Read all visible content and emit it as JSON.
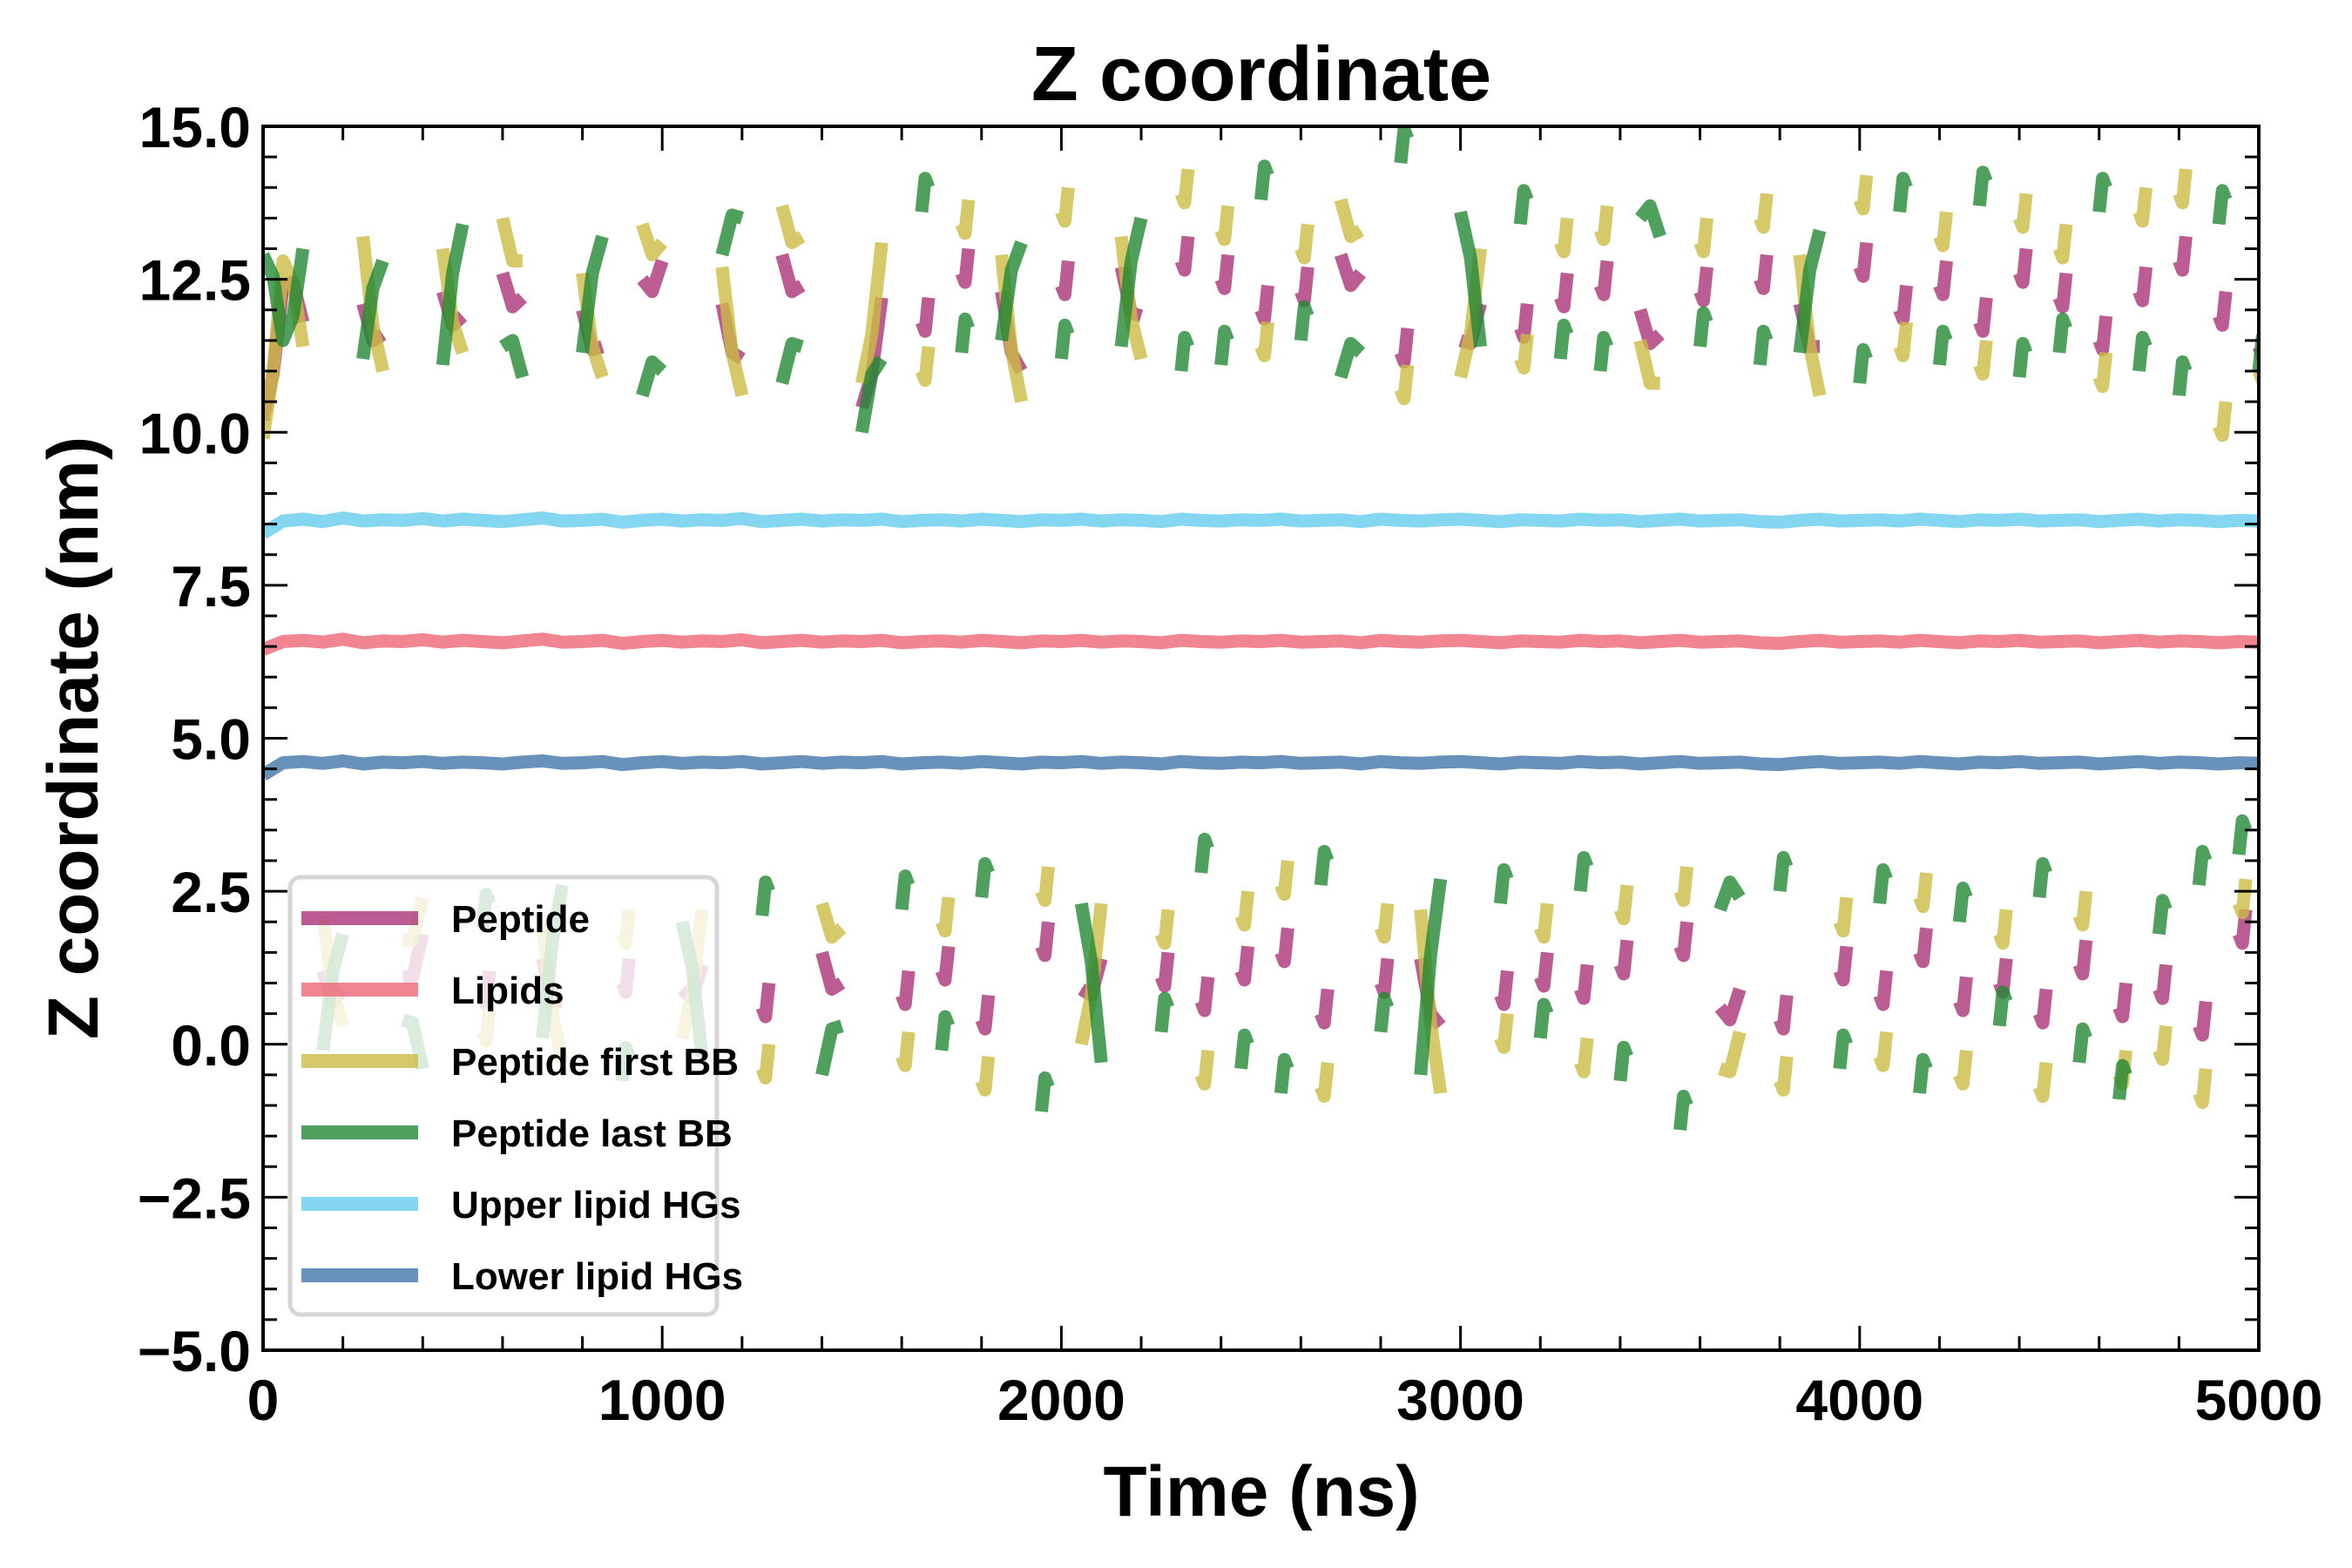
{
  "chart_data": {
    "type": "line",
    "title": "Z coordinate",
    "xlabel": "Time (ns)",
    "ylabel": "Z coordinate (nm)",
    "xlim": [
      0,
      5000
    ],
    "ylim": [
      -5.0,
      15.0
    ],
    "xticks": [
      0,
      1000,
      2000,
      3000,
      4000,
      5000
    ],
    "xtick_labels": [
      "0",
      "1000",
      "2000",
      "3000",
      "4000",
      "5000"
    ],
    "yticks": [
      -5.0,
      -2.5,
      0.0,
      2.5,
      5.0,
      7.5,
      10.0,
      12.5,
      15.0
    ],
    "ytick_labels": [
      "−5.0",
      "−2.5",
      "0.0",
      "2.5",
      "5.0",
      "7.5",
      "10.0",
      "12.5",
      "15.0"
    ],
    "x_minor_step": 200,
    "y_minor_step": 0.5,
    "grid": false,
    "legend_position": "lower-left",
    "x_step": 50,
    "series": [
      {
        "name": "Peptide",
        "color": "#AA3377",
        "alpha": 0.8,
        "values": [
          10.2,
          12.4,
          11.8,
          1.2,
          0.9,
          12.1,
          11.6,
          1.1,
          1.8,
          12.3,
          11.9,
          0.8,
          12.6,
          12.2,
          1.4,
          0.7,
          12.0,
          11.4,
          1.0,
          12.5,
          12.8,
          0.9,
          1.3,
          12.1,
          11.2,
          0.6,
          12.9,
          12.4,
          1.5,
          1.0,
          10.4,
          12.2,
          0.8,
          11.8,
          1.2,
          12.6,
          0.4,
          12.3,
          11.0,
          1.6,
          12.4,
          0.9,
          1.4,
          12.7,
          11.9,
          1.1,
          12.8,
          0.7,
          12.5,
          1.2,
          12.0,
          1.5,
          12.3,
          0.5,
          12.9,
          12.6,
          1.0,
          11.3,
          1.4,
          0.3,
          11.5,
          12.1,
          0.8,
          11.7,
          1.1,
          12.2,
          0.9,
          12.4,
          1.3,
          12.0,
          11.6,
          1.6,
          12.3,
          0.6,
          0.9,
          12.5,
          0.4,
          12.1,
          11.4,
          1.2,
          12.7,
          0.8,
          12.0,
          1.5,
          12.4,
          0.7,
          11.8,
          1.0,
          12.6,
          0.5,
          12.2,
          1.3,
          11.5,
          0.6,
          12.3,
          0.9,
          12.8,
          0.3,
          11.9,
          1.8,
          11.4
        ]
      },
      {
        "name": "Lipids",
        "color": "#EE6677",
        "alpha": 0.8,
        "values": [
          6.45,
          6.58,
          6.6,
          6.57,
          6.62,
          6.56,
          6.59,
          6.58,
          6.61,
          6.57,
          6.6,
          6.58,
          6.56,
          6.59,
          6.62,
          6.57,
          6.58,
          6.6,
          6.55,
          6.58,
          6.6,
          6.57,
          6.59,
          6.58,
          6.61,
          6.56,
          6.58,
          6.6,
          6.57,
          6.59,
          6.58,
          6.6,
          6.56,
          6.58,
          6.59,
          6.57,
          6.6,
          6.58,
          6.56,
          6.59,
          6.58,
          6.6,
          6.57,
          6.59,
          6.58,
          6.56,
          6.6,
          6.58,
          6.57,
          6.59,
          6.58,
          6.6,
          6.57,
          6.58,
          6.59,
          6.56,
          6.6,
          6.58,
          6.57,
          6.59,
          6.6,
          6.58,
          6.56,
          6.59,
          6.58,
          6.57,
          6.6,
          6.58,
          6.59,
          6.56,
          6.58,
          6.6,
          6.57,
          6.58,
          6.59,
          6.56,
          6.55,
          6.58,
          6.6,
          6.57,
          6.58,
          6.59,
          6.57,
          6.6,
          6.58,
          6.56,
          6.59,
          6.58,
          6.6,
          6.57,
          6.58,
          6.59,
          6.56,
          6.58,
          6.6,
          6.57,
          6.59,
          6.58,
          6.56,
          6.58,
          6.57
        ]
      },
      {
        "name": "Peptide first BB",
        "color": "#CCBB44",
        "alpha": 0.8,
        "values": [
          9.9,
          12.8,
          11.4,
          2.1,
          0.3,
          13.2,
          11.0,
          1.7,
          2.4,
          13.0,
          11.3,
          0.2,
          13.5,
          12.8,
          2.0,
          -0.3,
          12.6,
          10.9,
          1.8,
          13.4,
          13.1,
          0.1,
          2.2,
          12.7,
          10.6,
          -0.4,
          13.7,
          13.2,
          2.3,
          1.9,
          10.8,
          13.1,
          -0.2,
          11.0,
          2.0,
          13.4,
          -0.6,
          12.9,
          10.5,
          2.5,
          13.6,
          0.0,
          2.3,
          13.2,
          11.2,
          1.8,
          13.9,
          -0.5,
          13.3,
          2.1,
          11.4,
          2.6,
          13.0,
          -0.7,
          13.8,
          13.3,
          1.9,
          10.7,
          2.2,
          -0.8,
          10.9,
          13.0,
          0.1,
          11.2,
          1.9,
          13.1,
          -0.3,
          13.3,
          2.2,
          11.5,
          10.8,
          2.5,
          13.1,
          -0.4,
          0.2,
          13.5,
          -0.6,
          12.9,
          10.6,
          2.0,
          13.8,
          -0.2,
          11.4,
          2.4,
          13.2,
          -0.5,
          11.1,
          1.8,
          13.5,
          -0.7,
          13.0,
          2.1,
          10.9,
          -0.5,
          13.6,
          -0.1,
          13.9,
          -0.8,
          10.1,
          2.3,
          11.0
        ]
      },
      {
        "name": "Peptide last BB",
        "color": "#228833",
        "alpha": 0.8,
        "values": [
          12.9,
          11.5,
          13.0,
          -0.1,
          1.8,
          11.2,
          12.8,
          0.4,
          -0.4,
          11.1,
          13.4,
          1.9,
          11.4,
          10.9,
          0.1,
          2.6,
          11.3,
          13.2,
          -0.6,
          10.6,
          11.0,
          2.0,
          -0.2,
          12.9,
          13.5,
          2.1,
          10.8,
          11.4,
          -0.5,
          0.3,
          10.0,
          11.2,
          2.2,
          13.6,
          -0.1,
          11.3,
          2.4,
          11.5,
          13.1,
          -1.1,
          11.2,
          2.3,
          -0.3,
          11.4,
          13.5,
          0.2,
          11.0,
          2.8,
          11.1,
          -0.4,
          13.8,
          -0.8,
          11.5,
          2.6,
          10.9,
          11.3,
          0.2,
          14.4,
          -0.5,
          2.7,
          13.6,
          11.4,
          2.3,
          13.4,
          0.1,
          11.2,
          2.5,
          11.0,
          -0.6,
          13.5,
          13.2,
          -1.4,
          11.4,
          2.2,
          2.4,
          11.1,
          2.5,
          11.3,
          13.3,
          -0.4,
          10.8,
          2.3,
          13.6,
          -0.8,
          11.1,
          2.0,
          13.7,
          0.3,
          10.9,
          2.4,
          11.3,
          -0.3,
          13.6,
          -0.9,
          11.0,
          1.8,
          10.6,
          2.6,
          13.4,
          3.1,
          11.0
        ]
      },
      {
        "name": "Upper lipid HGs",
        "color": "#66CCEE",
        "alpha": 0.8,
        "values": [
          8.35,
          8.55,
          8.58,
          8.54,
          8.6,
          8.55,
          8.57,
          8.56,
          8.59,
          8.55,
          8.58,
          8.56,
          8.54,
          8.57,
          8.6,
          8.55,
          8.56,
          8.58,
          8.53,
          8.56,
          8.58,
          8.55,
          8.57,
          8.56,
          8.59,
          8.54,
          8.56,
          8.58,
          8.55,
          8.57,
          8.56,
          8.58,
          8.54,
          8.56,
          8.57,
          8.55,
          8.58,
          8.56,
          8.54,
          8.57,
          8.56,
          8.58,
          8.55,
          8.57,
          8.56,
          8.54,
          8.58,
          8.56,
          8.55,
          8.57,
          8.56,
          8.58,
          8.55,
          8.56,
          8.57,
          8.54,
          8.58,
          8.56,
          8.55,
          8.57,
          8.58,
          8.56,
          8.54,
          8.57,
          8.56,
          8.55,
          8.58,
          8.56,
          8.57,
          8.54,
          8.56,
          8.58,
          8.55,
          8.56,
          8.57,
          8.54,
          8.53,
          8.56,
          8.58,
          8.55,
          8.56,
          8.57,
          8.55,
          8.58,
          8.56,
          8.54,
          8.57,
          8.56,
          8.58,
          8.55,
          8.56,
          8.57,
          8.54,
          8.56,
          8.58,
          8.55,
          8.57,
          8.56,
          8.54,
          8.56,
          8.55
        ]
      },
      {
        "name": "Lower lipid HGs",
        "color": "#4477AA",
        "alpha": 0.8,
        "values": [
          4.4,
          4.6,
          4.62,
          4.59,
          4.63,
          4.58,
          4.61,
          4.6,
          4.62,
          4.59,
          4.61,
          4.6,
          4.58,
          4.61,
          4.63,
          4.59,
          4.6,
          4.62,
          4.57,
          4.6,
          4.62,
          4.59,
          4.61,
          4.6,
          4.62,
          4.58,
          4.6,
          4.62,
          4.59,
          4.61,
          4.6,
          4.62,
          4.58,
          4.6,
          4.61,
          4.59,
          4.62,
          4.6,
          4.58,
          4.61,
          4.6,
          4.62,
          4.59,
          4.61,
          4.6,
          4.58,
          4.62,
          4.6,
          4.59,
          4.61,
          4.6,
          4.62,
          4.59,
          4.6,
          4.61,
          4.58,
          4.62,
          4.6,
          4.59,
          4.61,
          4.62,
          4.6,
          4.58,
          4.61,
          4.6,
          4.59,
          4.62,
          4.6,
          4.61,
          4.58,
          4.6,
          4.62,
          4.59,
          4.6,
          4.61,
          4.58,
          4.57,
          4.6,
          4.62,
          4.59,
          4.6,
          4.61,
          4.59,
          4.62,
          4.6,
          4.58,
          4.61,
          4.6,
          4.62,
          4.59,
          4.6,
          4.61,
          4.58,
          4.6,
          4.62,
          4.59,
          4.61,
          4.6,
          4.58,
          4.6,
          4.59
        ]
      }
    ]
  }
}
